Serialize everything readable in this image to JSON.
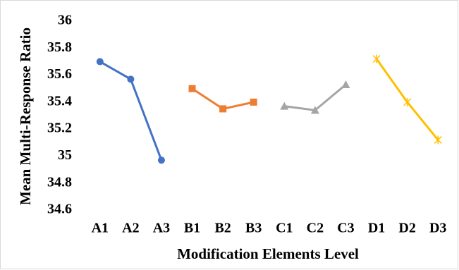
{
  "chart_data": {
    "type": "line",
    "x_label": "Modification Elements Level",
    "y_label": "Mean Multi-Response Ratio",
    "categories": [
      "A1",
      "A2",
      "A3",
      "B1",
      "B2",
      "B3",
      "C1",
      "C2",
      "C3",
      "D1",
      "D2",
      "D3"
    ],
    "series": [
      {
        "color": "#4472c4",
        "marker": "circle",
        "values": [
          35.7,
          35.57,
          34.97,
          null,
          null,
          null,
          null,
          null,
          null,
          null,
          null,
          null
        ]
      },
      {
        "color": "#ed7d31",
        "marker": "square",
        "values": [
          null,
          null,
          null,
          35.5,
          35.35,
          35.4,
          null,
          null,
          null,
          null,
          null,
          null
        ]
      },
      {
        "color": "#a5a5a5",
        "marker": "triangle",
        "values": [
          null,
          null,
          null,
          null,
          null,
          null,
          35.37,
          35.34,
          35.53,
          null,
          null,
          null
        ]
      },
      {
        "color": "#ffc000",
        "marker": "star",
        "values": [
          null,
          null,
          null,
          null,
          null,
          null,
          null,
          null,
          null,
          35.72,
          35.4,
          35.12
        ]
      }
    ],
    "ylim": [
      34.6,
      36
    ],
    "yticks": [
      34.6,
      34.8,
      35,
      35.2,
      35.4,
      35.6,
      35.8,
      36
    ],
    "grid": false
  }
}
